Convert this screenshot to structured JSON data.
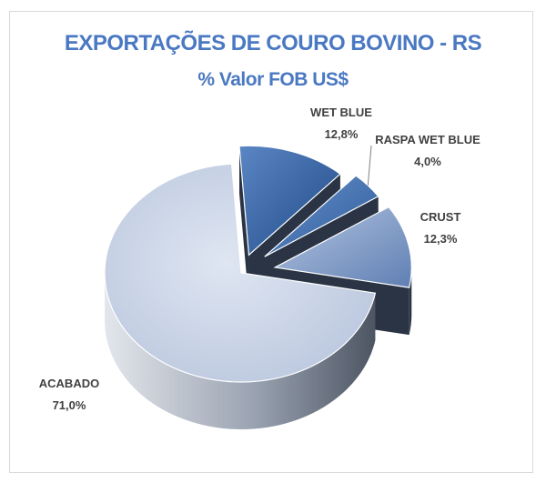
{
  "chart_data": {
    "type": "pie",
    "title": "EXPORTAÇÕES  DE COURO BOVINO - RS",
    "subtitle": "% Valor FOB US$",
    "slices": [
      {
        "label": "WET BLUE",
        "value_label": "12,8%",
        "value": 12.8,
        "color": "#2f5f9e",
        "exploded": true
      },
      {
        "label": "RASPA WET BLUE",
        "value_label": "4,0%",
        "value": 4.0,
        "color": "#3a6dab",
        "exploded": true
      },
      {
        "label": "CRUST",
        "value_label": "12,3%",
        "value": 12.3,
        "color": "#7d98c4",
        "exploded": true
      },
      {
        "label": "ACABADO",
        "value_label": "71,0%",
        "value": 71.0,
        "color": "#ccd6e8",
        "exploded": false
      }
    ],
    "style": "3d-exploded-pie",
    "legend": "none"
  }
}
